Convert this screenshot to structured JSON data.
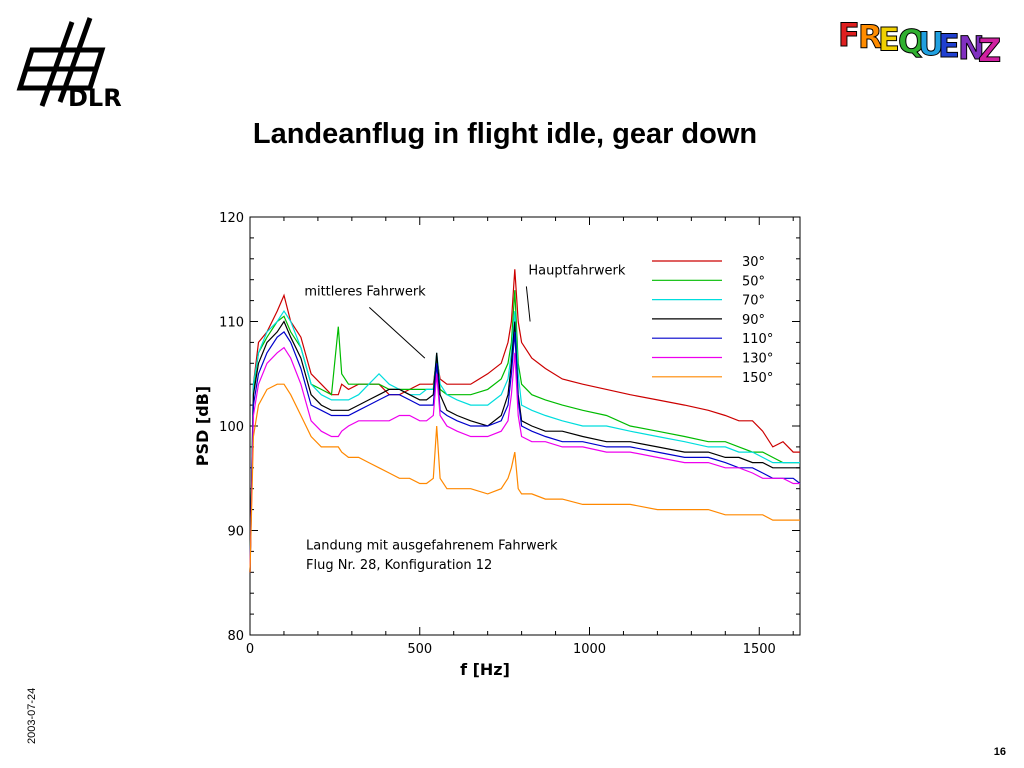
{
  "branding": {
    "org_logo_text": "DLR",
    "project_logo_text": "FREQUENZ",
    "logo_color": "#000000"
  },
  "slide": {
    "title": "Landeanflug in flight idle, gear down",
    "date": "2003-07-24",
    "page_number": "16"
  },
  "chart_data": {
    "type": "line",
    "title": "",
    "xlabel": "f [Hz]",
    "ylabel": "PSD [dB]",
    "xlim": [
      0,
      1620
    ],
    "ylim": [
      80,
      120
    ],
    "xticks": [
      0,
      500,
      1000,
      1500
    ],
    "yticks": [
      80,
      90,
      100,
      110,
      120
    ],
    "grid": false,
    "legend_position": "top-right",
    "annotations": [
      {
        "text": "mittleres Fahrwerk",
        "x": 160,
        "y": 112.5,
        "arrow_to": [
          515,
          106.5
        ]
      },
      {
        "text": "Hauptfahrwerk",
        "x": 820,
        "y": 114.5,
        "arrow_to": [
          825,
          110
        ]
      },
      {
        "text": "Landung mit ausgefahrenem Fahrwerk",
        "x": 165,
        "y": 88.2
      },
      {
        "text": "Flug Nr. 28, Konfiguration 12",
        "x": 165,
        "y": 86.3
      }
    ],
    "x": [
      0,
      10,
      25,
      50,
      80,
      100,
      120,
      150,
      180,
      210,
      240,
      260,
      270,
      290,
      320,
      350,
      380,
      410,
      440,
      470,
      500,
      520,
      540,
      550,
      560,
      580,
      610,
      650,
      700,
      740,
      760,
      770,
      780,
      790,
      800,
      830,
      870,
      920,
      980,
      1050,
      1120,
      1200,
      1280,
      1350,
      1400,
      1440,
      1480,
      1510,
      1540,
      1570,
      1600,
      1620
    ],
    "series": [
      {
        "name": "30°",
        "color": "#cc0000",
        "values": [
          86,
          104,
          108,
          109,
          111,
          112.5,
          110,
          108.5,
          105,
          104,
          103,
          103,
          104,
          103.5,
          104,
          104,
          104,
          103,
          103,
          103.5,
          104,
          104,
          104,
          106.5,
          104.5,
          104,
          104,
          104,
          105,
          106,
          108,
          110,
          115,
          110,
          108,
          106.5,
          105.5,
          104.5,
          104,
          103.5,
          103,
          102.5,
          102,
          101.5,
          101,
          100.5,
          100.5,
          99.5,
          98,
          98.5,
          97.5,
          97.5
        ]
      },
      {
        "name": "50°",
        "color": "#00bb00",
        "values": [
          86,
          103.5,
          107,
          108.5,
          110,
          110.5,
          109,
          107.5,
          104,
          103.5,
          103,
          109.5,
          105,
          104,
          104,
          104,
          104,
          103.5,
          103.5,
          103.5,
          103.5,
          103.5,
          103.5,
          106.5,
          103.5,
          103,
          103,
          103,
          103.5,
          104.5,
          106,
          108,
          113,
          106,
          104,
          103,
          102.5,
          102,
          101.5,
          101,
          100,
          99.5,
          99,
          98.5,
          98.5,
          98,
          97.5,
          97.5,
          97,
          96.5,
          96.5,
          96.5
        ]
      },
      {
        "name": "70°",
        "color": "#00dddd",
        "values": [
          86,
          104,
          107,
          109,
          110,
          111,
          110,
          107.5,
          104,
          103,
          102.5,
          102.5,
          102.5,
          102.5,
          103,
          104,
          105,
          104,
          103.5,
          103,
          103,
          103.5,
          103.5,
          107,
          104,
          103,
          102.5,
          102,
          102,
          103,
          104.5,
          107,
          111,
          105,
          102,
          101.5,
          101,
          100.5,
          100,
          100,
          99.5,
          99,
          98.5,
          98,
          98,
          97.5,
          97.5,
          97,
          96.5,
          96.5,
          96.5,
          96.5
        ]
      },
      {
        "name": "90°",
        "color": "#000000",
        "values": [
          86,
          103,
          106,
          108,
          109,
          110,
          108.5,
          106.5,
          103,
          102,
          101.5,
          101.5,
          101.5,
          101.5,
          102,
          102.5,
          103,
          103.5,
          103.5,
          103,
          102.5,
          102.5,
          103,
          107,
          103,
          101.5,
          101,
          100.5,
          100,
          101,
          103,
          106,
          110,
          103,
          100.5,
          100,
          99.5,
          99.5,
          99,
          98.5,
          98.5,
          98,
          97.5,
          97.5,
          97,
          97,
          96.5,
          96.5,
          96,
          96,
          96,
          96
        ]
      },
      {
        "name": "110°",
        "color": "#0000cc",
        "values": [
          86,
          102,
          105,
          107,
          108.5,
          109,
          108,
          105.5,
          102,
          101.5,
          101,
          101,
          101,
          101,
          101.5,
          102,
          102.5,
          103,
          103,
          102.5,
          102,
          102,
          102,
          106,
          101.5,
          101,
          100.5,
          100,
          100,
          100.5,
          102,
          105,
          109,
          102.5,
          100,
          99.5,
          99,
          98.5,
          98.5,
          98,
          98,
          97.5,
          97,
          97,
          96.5,
          96,
          96,
          95.5,
          95,
          95,
          95,
          94.5
        ]
      },
      {
        "name": "130°",
        "color": "#ee00ee",
        "values": [
          86,
          101,
          104,
          106,
          107,
          107.5,
          106.5,
          104,
          100.5,
          99.5,
          99,
          99,
          99.5,
          100,
          100.5,
          100.5,
          100.5,
          100.5,
          101,
          101,
          100.5,
          100.5,
          101,
          105,
          101,
          100,
          99.5,
          99,
          99,
          99.5,
          100.5,
          103,
          107,
          101,
          99,
          98.5,
          98.5,
          98,
          98,
          97.5,
          97.5,
          97,
          96.5,
          96.5,
          96,
          96,
          95.5,
          95,
          95,
          95,
          94.5,
          94.5
        ]
      },
      {
        "name": "150°",
        "color": "#ff8800",
        "values": [
          86,
          99,
          102,
          103.5,
          104,
          104,
          103,
          101,
          99,
          98,
          98,
          98,
          97.5,
          97,
          97,
          96.5,
          96,
          95.5,
          95,
          95,
          94.5,
          94.5,
          95,
          100,
          95,
          94,
          94,
          94,
          93.5,
          94,
          95,
          96,
          97.5,
          94,
          93.5,
          93.5,
          93,
          93,
          92.5,
          92.5,
          92.5,
          92,
          92,
          92,
          91.5,
          91.5,
          91.5,
          91.5,
          91,
          91,
          91,
          91
        ]
      }
    ]
  }
}
